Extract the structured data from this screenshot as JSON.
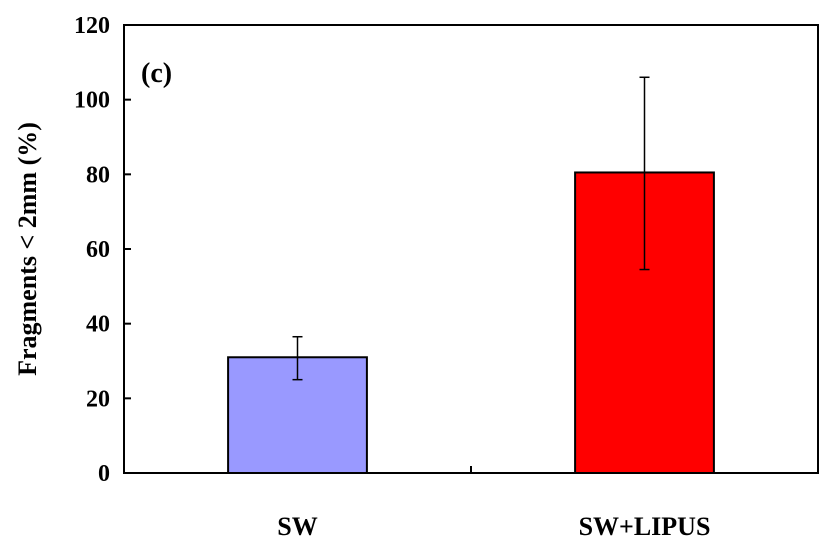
{
  "chart_data": {
    "type": "bar",
    "panel_label": "(c)",
    "title": "",
    "xlabel": "",
    "ylabel": "Fragments < 2mm (%)",
    "categories": [
      "SW",
      "SW+LIPUS"
    ],
    "values": [
      31,
      80.5
    ],
    "error_bars": [
      {
        "low": 25,
        "high": 36.5
      },
      {
        "low": 54.5,
        "high": 106
      }
    ],
    "colors": [
      "#9999ff",
      "#ff0000"
    ],
    "ylim": [
      0,
      120
    ],
    "yticks": [
      0,
      20,
      40,
      60,
      80,
      100,
      120
    ],
    "ytick_labels": [
      "0",
      "20",
      "40",
      "60",
      "80",
      "100",
      "120"
    ],
    "grid": false,
    "legend": "none"
  }
}
